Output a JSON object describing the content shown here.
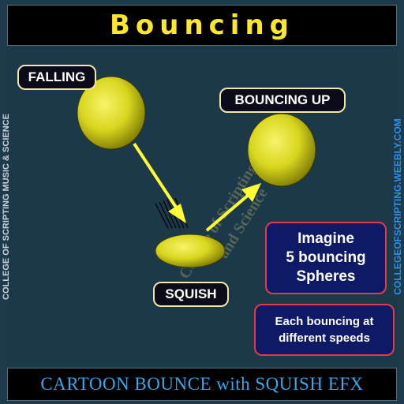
{
  "header": {
    "title": "Bouncing"
  },
  "side": {
    "left_text": "COLLEGE OF SCRIPTING MUSIC & SCIENCE",
    "right_text": "COLLEGEOFSCRIPTING.WEEBLY.COM"
  },
  "labels": {
    "falling": "FALLING",
    "bouncing_up": "BOUNCING UP",
    "squish": "SQUISH"
  },
  "watermark": {
    "line1": "College of Scripting Music",
    "line2": "and Science"
  },
  "info_main": {
    "lines": [
      "Imagine",
      "5 bouncing",
      "Spheres"
    ]
  },
  "info_speeds": {
    "lines": [
      "Each bouncing at",
      "different speeds"
    ]
  },
  "footer": {
    "text": "CARTOON BOUNCE with SQUISH EFX"
  },
  "colors": {
    "ball": "#d9d61e",
    "arrow": "#ffff33",
    "title": "#ffe82a",
    "footer": "#38a7e8",
    "info_border": "#e23a4c"
  }
}
